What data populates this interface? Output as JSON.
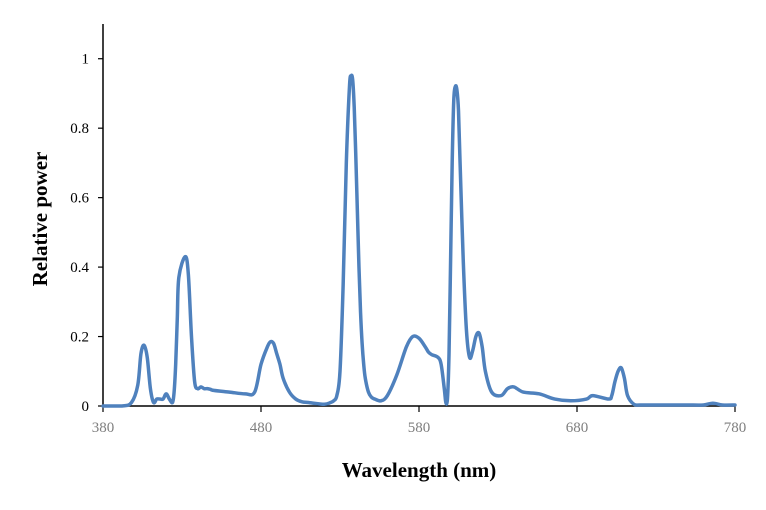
{
  "colors": {
    "series": "#4f81bd"
  },
  "chart_data": {
    "type": "line",
    "title": "",
    "xlabel": "Wavelength (nm)",
    "ylabel": "Relative power",
    "xlim": [
      380,
      780
    ],
    "ylim": [
      0,
      1.1
    ],
    "x_ticks": [
      380,
      480,
      580,
      680,
      780
    ],
    "x_tick_labels": [
      "380",
      "480",
      "580",
      "680",
      "780"
    ],
    "y_ticks": [
      0,
      0.2,
      0.4,
      0.6,
      0.8,
      1
    ],
    "y_tick_labels": [
      "0",
      "0.2",
      "0.4",
      "0.6",
      "0.8",
      "1"
    ],
    "grid": false,
    "legend": "none",
    "series": [
      {
        "x": [
          380,
          392,
          398,
          402,
          404,
          406,
          408,
          410,
          412,
          414,
          416,
          418,
          420,
          422,
          424,
          425,
          426,
          427,
          428,
          432,
          434,
          436,
          438,
          440,
          442,
          444,
          446,
          448,
          450,
          460,
          470,
          476,
          480,
          484,
          486,
          488,
          490,
          492,
          494,
          498,
          502,
          506,
          510,
          520,
          524,
          526,
          528,
          530,
          532,
          534,
          536,
          537,
          538,
          539,
          540,
          541,
          542,
          543,
          544,
          545,
          546,
          548,
          550,
          552,
          556,
          560,
          566,
          572,
          576,
          580,
          584,
          586,
          588,
          592,
          594,
          596,
          597,
          598,
          599,
          600,
          601,
          602,
          603,
          604,
          605,
          606,
          608,
          610,
          612,
          614,
          616,
          618,
          620,
          622,
          626,
          632,
          636,
          640,
          646,
          656,
          666,
          676,
          686,
          690,
          700,
          702,
          704,
          706,
          708,
          710,
          712,
          716,
          720,
          730,
          740,
          750,
          760,
          766,
          772,
          780
        ],
        "y": [
          0,
          0,
          0.01,
          0.06,
          0.15,
          0.175,
          0.14,
          0.05,
          0.01,
          0.02,
          0.02,
          0.02,
          0.035,
          0.02,
          0.01,
          0.04,
          0.12,
          0.25,
          0.37,
          0.43,
          0.38,
          0.2,
          0.07,
          0.05,
          0.055,
          0.05,
          0.05,
          0.048,
          0.045,
          0.04,
          0.035,
          0.04,
          0.12,
          0.17,
          0.185,
          0.18,
          0.15,
          0.12,
          0.08,
          0.04,
          0.02,
          0.012,
          0.01,
          0.005,
          0.01,
          0.015,
          0.03,
          0.1,
          0.35,
          0.7,
          0.92,
          0.95,
          0.94,
          0.86,
          0.72,
          0.56,
          0.4,
          0.27,
          0.18,
          0.12,
          0.08,
          0.04,
          0.025,
          0.02,
          0.015,
          0.03,
          0.09,
          0.17,
          0.2,
          0.195,
          0.17,
          0.155,
          0.148,
          0.14,
          0.12,
          0.05,
          0.01,
          0.02,
          0.15,
          0.42,
          0.7,
          0.88,
          0.92,
          0.91,
          0.85,
          0.7,
          0.42,
          0.22,
          0.14,
          0.16,
          0.2,
          0.21,
          0.17,
          0.1,
          0.04,
          0.03,
          0.05,
          0.055,
          0.04,
          0.035,
          0.02,
          0.015,
          0.02,
          0.03,
          0.02,
          0.03,
          0.07,
          0.1,
          0.11,
          0.08,
          0.03,
          0.005,
          0.003,
          0.003,
          0.003,
          0.003,
          0.003,
          0.008,
          0.003,
          0.003
        ]
      }
    ]
  }
}
